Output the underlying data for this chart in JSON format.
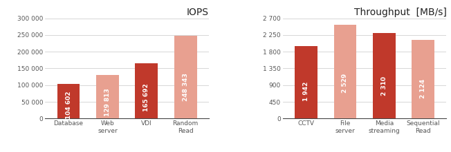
{
  "iops": {
    "title": "IOPS",
    "categories": [
      "Database",
      "Web\nserver",
      "VDI",
      "Random\nRead"
    ],
    "values": [
      104602,
      129813,
      165692,
      248343
    ],
    "colors": [
      "#c0392b",
      "#e8a090",
      "#c0392b",
      "#e8a090"
    ],
    "bar_labels": [
      "104 602",
      "129 813",
      "165 692",
      "248 343"
    ],
    "ylim": [
      0,
      300000
    ],
    "yticks": [
      0,
      50000,
      100000,
      150000,
      200000,
      250000,
      300000
    ],
    "ytick_labels": [
      "0",
      "50 000",
      "100 000",
      "150 000",
      "200 000",
      "250 000",
      "300 000"
    ]
  },
  "throughput": {
    "title": "Throughput  [MB/s]",
    "categories": [
      "CCTV",
      "File\nserver",
      "Media\nstreaming",
      "Sequential\nRead"
    ],
    "values": [
      1942,
      2529,
      2310,
      2124
    ],
    "colors": [
      "#c0392b",
      "#e8a090",
      "#c0392b",
      "#e8a090"
    ],
    "bar_labels": [
      "1 942",
      "2 529",
      "2 310",
      "2 124"
    ],
    "ylim": [
      0,
      2700
    ],
    "yticks": [
      0,
      450,
      900,
      1350,
      1800,
      2250,
      2700
    ],
    "ytick_labels": [
      "0",
      "450",
      "900",
      "1 350",
      "1 800",
      "2 250",
      "2 700"
    ]
  },
  "background_color": "#ffffff",
  "grid_color": "#d0d0d0",
  "title_fontsize": 10,
  "label_fontsize": 6.5,
  "bar_label_fontsize": 6.5,
  "tick_fontsize": 6.5,
  "tick_color": "#555555"
}
